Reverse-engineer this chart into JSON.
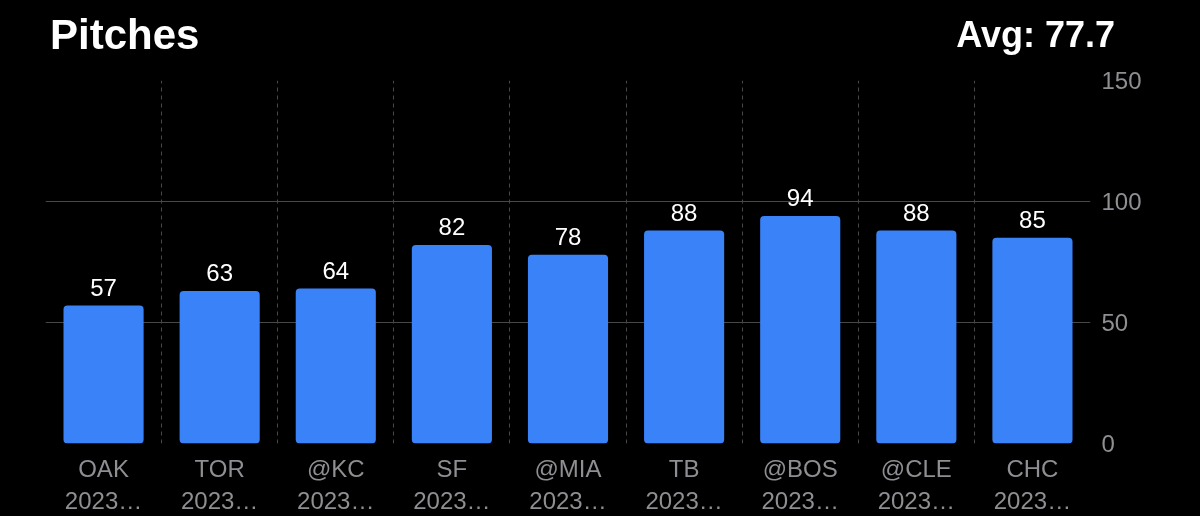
{
  "chart_data": {
    "type": "bar",
    "title": "Pitches",
    "annotations": [
      "Avg: 77.7"
    ],
    "categories": [
      "OAK\n2023…",
      "TOR\n2023…",
      "@KC\n2023…",
      "SF\n2023…",
      "@MIA\n2023…",
      "TB\n2023…",
      "@BOS\n2023…",
      "@CLE\n2023…",
      "CHC\n2023…"
    ],
    "values": [
      57,
      63,
      64,
      82,
      78,
      88,
      94,
      88,
      85
    ],
    "color": "#3a82f7",
    "ylim": [
      0,
      150
    ],
    "yticks": [
      0,
      50,
      100,
      150
    ],
    "grid": true,
    "data_labels": true
  }
}
